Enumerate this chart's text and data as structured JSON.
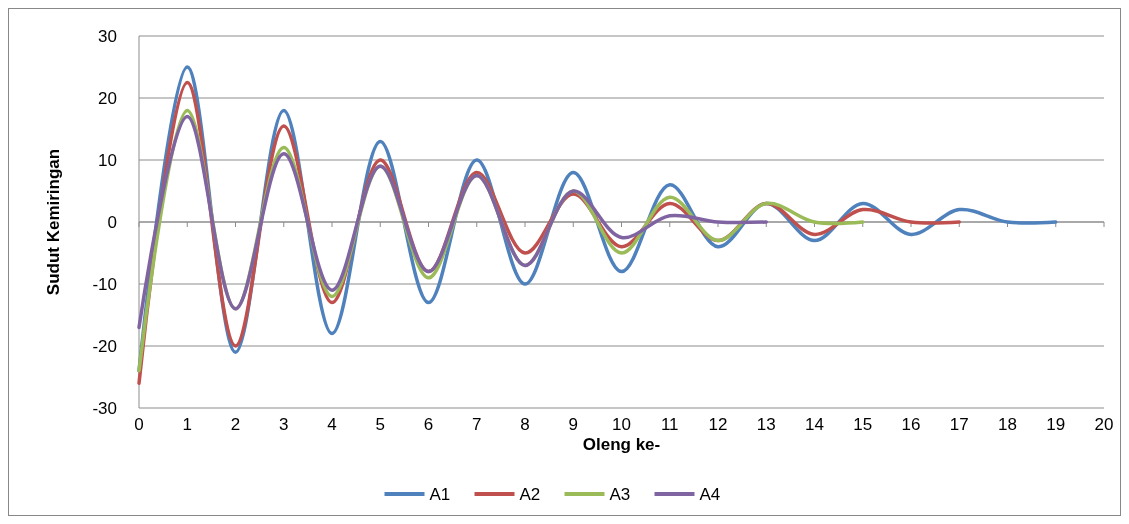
{
  "chart_data": {
    "type": "line",
    "xlabel": "Oleng ke-",
    "ylabel": "Sudut Kemiringan",
    "xlim": [
      0,
      20
    ],
    "xticks": [
      0,
      1,
      2,
      3,
      4,
      5,
      6,
      7,
      8,
      9,
      10,
      11,
      12,
      13,
      14,
      15,
      16,
      17,
      18,
      19,
      20
    ],
    "ylim": [
      -30,
      30
    ],
    "yticks": [
      -30,
      -20,
      -10,
      0,
      10,
      20,
      30
    ],
    "grid": "y",
    "legend": "bottom",
    "marker": "none",
    "line_style": "solid",
    "series": [
      {
        "name": "A1",
        "color": "#4f81bd",
        "x": [
          0,
          1,
          2,
          3,
          4,
          5,
          6,
          7,
          8,
          9,
          10,
          11,
          12,
          13,
          14,
          15,
          16,
          17,
          18,
          19
        ],
        "values": [
          -24,
          25,
          -21,
          18,
          -18,
          13,
          -13,
          10,
          -10,
          8,
          -8,
          6,
          -4,
          3,
          -3,
          3,
          -2,
          2,
          0,
          0
        ]
      },
      {
        "name": "A2",
        "color": "#c0504d",
        "x": [
          0,
          1,
          2,
          3,
          4,
          5,
          6,
          7,
          8,
          9,
          10,
          11,
          12,
          13,
          14,
          15,
          16,
          17
        ],
        "values": [
          -26,
          22.5,
          -20,
          15.5,
          -13,
          10,
          -8,
          8,
          -5,
          4.5,
          -4,
          3,
          -3,
          3,
          -2,
          2,
          0,
          0
        ]
      },
      {
        "name": "A3",
        "color": "#9bbb59",
        "x": [
          0,
          1,
          2,
          3,
          4,
          5,
          6,
          7,
          8,
          9,
          10,
          11,
          12,
          13,
          14,
          15
        ],
        "values": [
          -24,
          18,
          -14,
          12,
          -12,
          9,
          -9,
          7.5,
          -7,
          5,
          -5,
          4,
          -3,
          3,
          0,
          0
        ]
      },
      {
        "name": "A4",
        "color": "#8064a2",
        "x": [
          0,
          1,
          2,
          3,
          4,
          5,
          6,
          7,
          8,
          9,
          10,
          11,
          12,
          13
        ],
        "values": [
          -17,
          17,
          -14,
          11,
          -11,
          9,
          -8,
          7.5,
          -7,
          5,
          -2.5,
          1,
          0,
          0
        ]
      }
    ]
  }
}
